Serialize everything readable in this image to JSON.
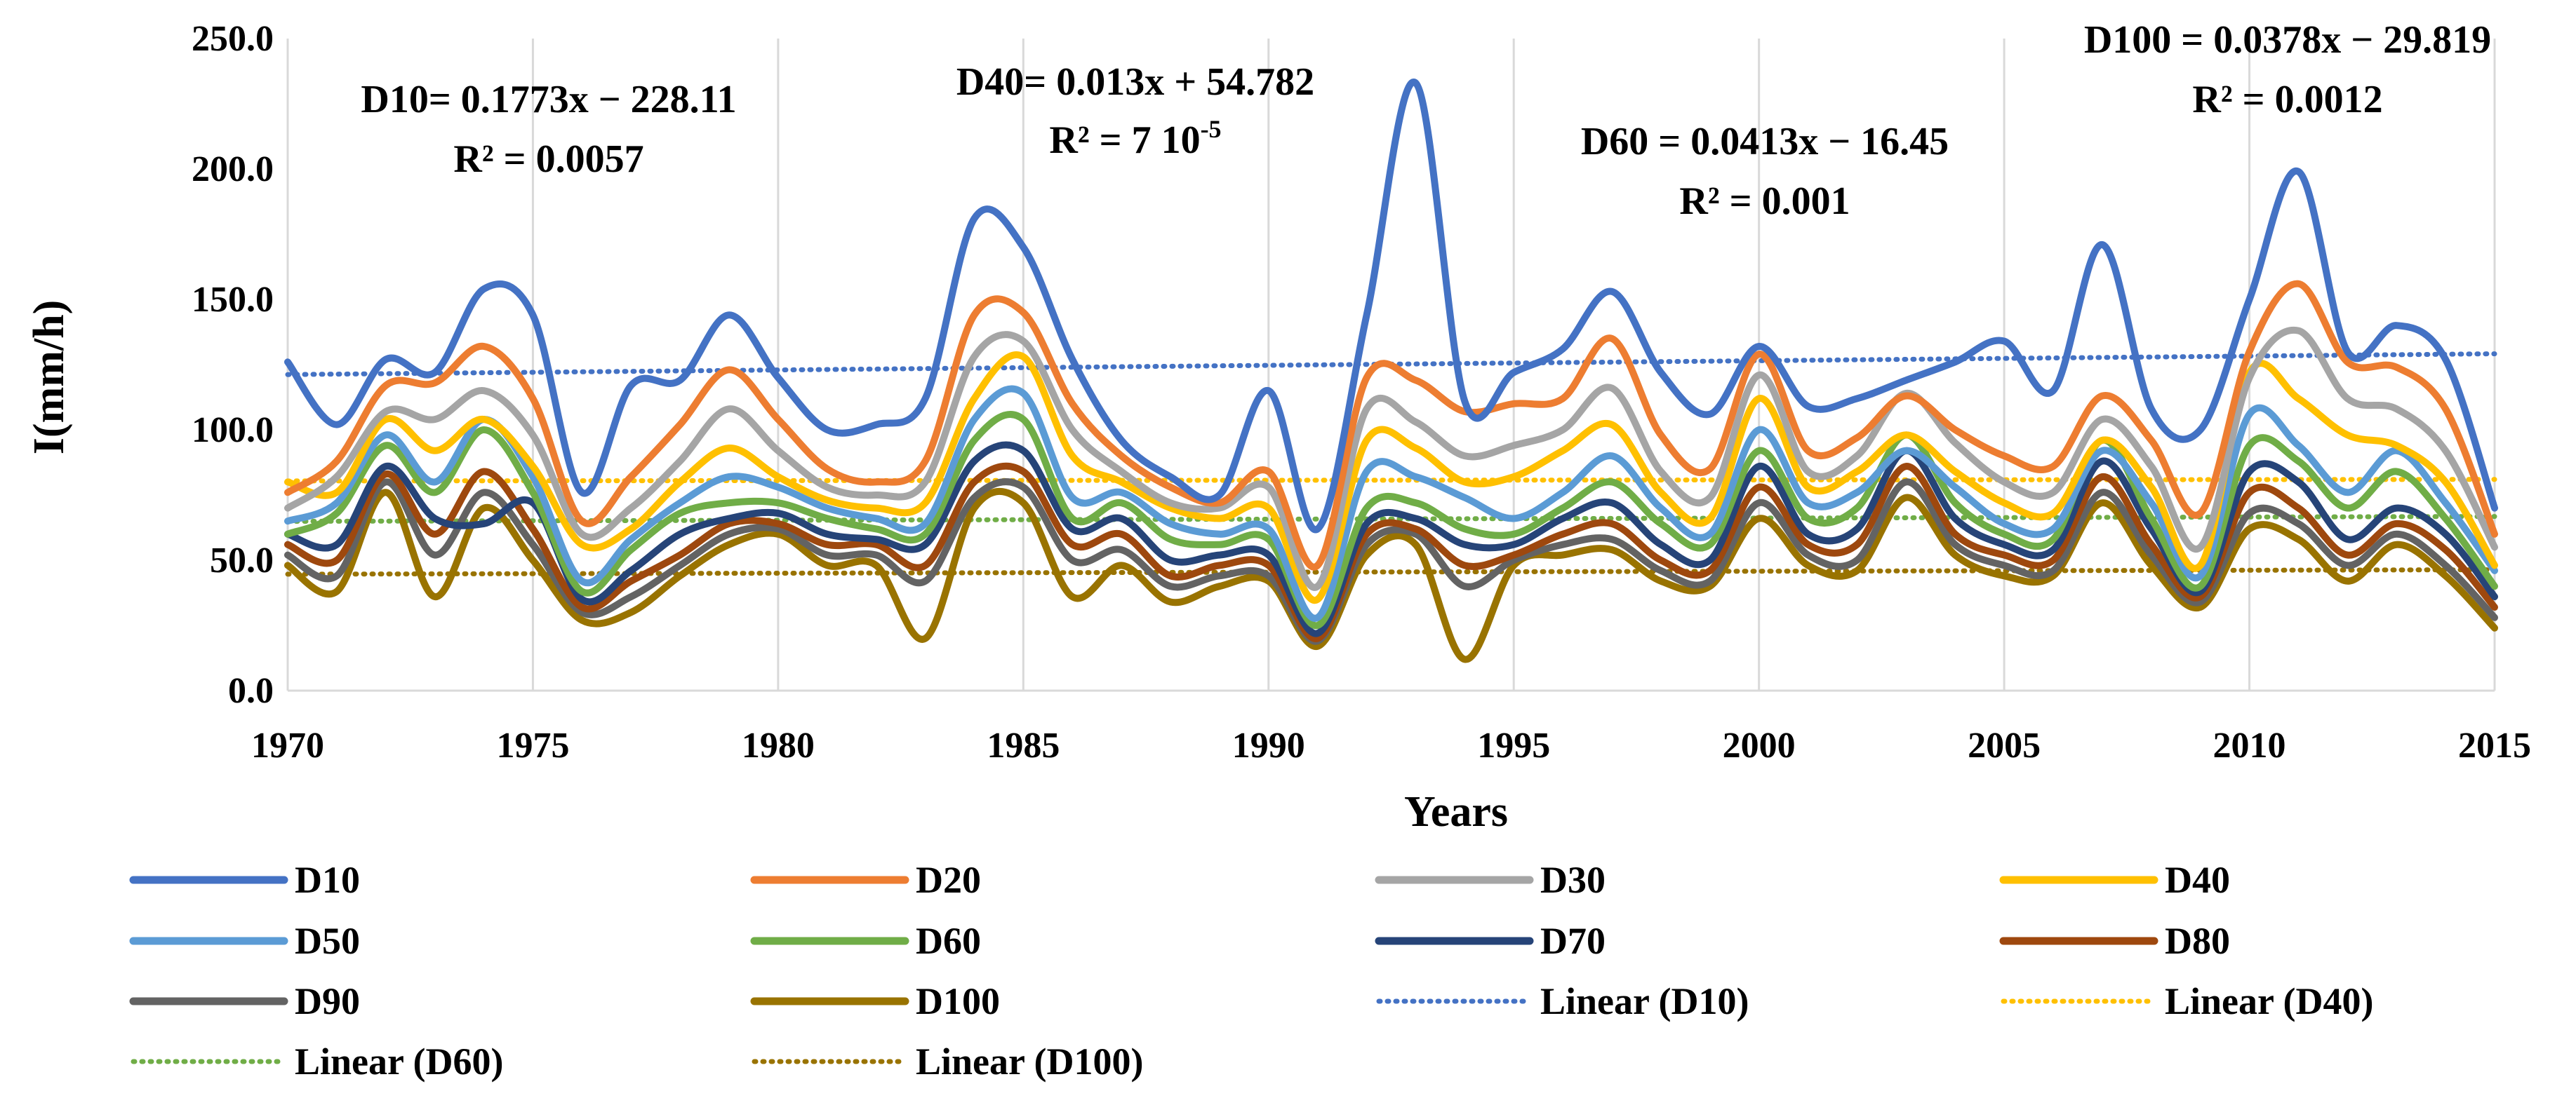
{
  "chart_data": {
    "type": "line",
    "title": "",
    "xlabel": "Years",
    "ylabel": "I(mm/h)",
    "xlim": [
      1970,
      2015
    ],
    "ylim": [
      0,
      250
    ],
    "x_ticks": [
      1970,
      1975,
      1980,
      1985,
      1990,
      1995,
      2000,
      2005,
      2010,
      2015
    ],
    "x_tick_labels": [
      "1970",
      "1975",
      "1980",
      "1985",
      "1990",
      "1995",
      "2000",
      "2005",
      "2010",
      "2015"
    ],
    "y_ticks": [
      0,
      50,
      100,
      150,
      200,
      250
    ],
    "y_tick_labels": [
      "0.0",
      "50.0",
      "100.0",
      "150.0",
      "200.0",
      "250.0"
    ],
    "grid": "vertical",
    "x": [
      1970,
      1971,
      1972,
      1973,
      1974,
      1975,
      1976,
      1977,
      1978,
      1979,
      1980,
      1981,
      1982,
      1983,
      1984,
      1985,
      1986,
      1987,
      1988,
      1989,
      1990,
      1991,
      1992,
      1993,
      1994,
      1995,
      1996,
      1997,
      1998,
      1999,
      2000,
      2001,
      2002,
      2003,
      2004,
      2005,
      2006,
      2007,
      2008,
      2009,
      2010,
      2011,
      2012,
      2013,
      2014,
      2015
    ],
    "series": [
      {
        "name": "D10",
        "color": "#4472C4",
        "values": [
          126,
          102,
          127,
          122,
          154,
          144,
          76,
          117,
          119,
          144,
          120,
          100,
          102,
          112,
          181,
          170,
          127,
          96,
          82,
          75,
          115,
          62,
          144,
          233,
          111,
          122,
          131,
          153,
          122,
          106,
          132,
          109,
          112,
          119,
          126,
          134,
          115,
          171,
          108,
          100,
          150,
          199,
          130,
          140,
          127,
          70
        ]
      },
      {
        "name": "D20",
        "color": "#ED7D31",
        "values": [
          76,
          88,
          117,
          118,
          132,
          112,
          65,
          82,
          102,
          123,
          104,
          85,
          80,
          88,
          144,
          145,
          110,
          90,
          78,
          72,
          84,
          48,
          120,
          119,
          107,
          110,
          112,
          135,
          98,
          85,
          129,
          92,
          97,
          113,
          100,
          90,
          86,
          113,
          96,
          68,
          130,
          156,
          126,
          124,
          108,
          60
        ]
      },
      {
        "name": "D30",
        "color": "#A5A5A5",
        "values": [
          70,
          82,
          107,
          104,
          115,
          98,
          60,
          70,
          88,
          108,
          92,
          78,
          75,
          80,
          128,
          134,
          100,
          84,
          72,
          70,
          78,
          40,
          108,
          103,
          90,
          94,
          100,
          116,
          84,
          74,
          121,
          84,
          90,
          114,
          95,
          80,
          76,
          104,
          86,
          55,
          120,
          138,
          112,
          108,
          92,
          55
        ]
      },
      {
        "name": "D40",
        "color": "#FFC000",
        "values": [
          80,
          76,
          104,
          92,
          104,
          86,
          56,
          62,
          80,
          93,
          82,
          73,
          70,
          72,
          112,
          128,
          90,
          80,
          70,
          66,
          70,
          35,
          96,
          93,
          80,
          82,
          92,
          102,
          76,
          66,
          112,
          78,
          84,
          98,
          84,
          72,
          68,
          96,
          78,
          48,
          122,
          112,
          98,
          94,
          80,
          48
        ]
      },
      {
        "name": "D50",
        "color": "#5B9BD5",
        "values": [
          65,
          72,
          98,
          80,
          104,
          82,
          42,
          58,
          72,
          82,
          78,
          70,
          66,
          64,
          104,
          114,
          74,
          76,
          64,
          60,
          62,
          28,
          84,
          82,
          74,
          66,
          76,
          90,
          70,
          60,
          100,
          72,
          76,
          92,
          78,
          64,
          62,
          92,
          72,
          44,
          106,
          94,
          76,
          92,
          72,
          46
        ]
      },
      {
        "name": "D60",
        "color": "#70AD47",
        "values": [
          60,
          68,
          94,
          76,
          100,
          76,
          38,
          54,
          68,
          72,
          72,
          66,
          62,
          60,
          96,
          104,
          66,
          72,
          58,
          56,
          58,
          25,
          70,
          72,
          62,
          60,
          70,
          80,
          64,
          56,
          92,
          66,
          70,
          98,
          72,
          60,
          58,
          96,
          66,
          40,
          94,
          88,
          70,
          84,
          66,
          40
        ]
      },
      {
        "name": "D70",
        "color": "#264478",
        "values": [
          60,
          56,
          86,
          66,
          64,
          72,
          35,
          46,
          60,
          66,
          68,
          60,
          58,
          56,
          88,
          92,
          62,
          66,
          50,
          52,
          52,
          22,
          64,
          66,
          56,
          56,
          66,
          72,
          56,
          50,
          86,
          60,
          62,
          92,
          66,
          56,
          54,
          88,
          62,
          38,
          84,
          80,
          58,
          70,
          60,
          36
        ]
      },
      {
        "name": "D80",
        "color": "#9E480E",
        "values": [
          56,
          50,
          83,
          60,
          84,
          62,
          32,
          42,
          52,
          64,
          64,
          56,
          56,
          48,
          80,
          84,
          56,
          60,
          44,
          48,
          48,
          20,
          60,
          62,
          48,
          52,
          60,
          64,
          50,
          46,
          78,
          56,
          56,
          86,
          60,
          52,
          50,
          82,
          56,
          36,
          76,
          70,
          52,
          64,
          54,
          32
        ]
      },
      {
        "name": "D90",
        "color": "#636363",
        "values": [
          52,
          44,
          80,
          52,
          76,
          56,
          30,
          36,
          48,
          60,
          62,
          52,
          52,
          42,
          74,
          78,
          50,
          54,
          40,
          44,
          44,
          19,
          56,
          60,
          40,
          50,
          56,
          58,
          46,
          42,
          72,
          52,
          50,
          80,
          56,
          48,
          46,
          76,
          52,
          34,
          68,
          64,
          48,
          60,
          48,
          28
        ]
      },
      {
        "name": "D100",
        "color": "#997300",
        "values": [
          48,
          38,
          76,
          36,
          70,
          50,
          27,
          30,
          44,
          56,
          60,
          48,
          48,
          20,
          70,
          72,
          36,
          48,
          34,
          40,
          42,
          17,
          52,
          56,
          12,
          48,
          52,
          54,
          42,
          40,
          66,
          48,
          46,
          74,
          52,
          44,
          44,
          72,
          48,
          32,
          62,
          58,
          42,
          56,
          44,
          24
        ]
      },
      {
        "name": "Linear (D10)",
        "color": "#4472C4",
        "dashed": true,
        "slope": 0.1773,
        "intercept": -228.11
      },
      {
        "name": "Linear (D40)",
        "color": "#FFC000",
        "dashed": true,
        "slope": 0.013,
        "intercept": 54.782
      },
      {
        "name": "Linear (D60)",
        "color": "#70AD47",
        "dashed": true,
        "slope": 0.0413,
        "intercept": -16.45
      },
      {
        "name": "Linear (D100)",
        "color": "#997300",
        "dashed": true,
        "slope": 0.0378,
        "intercept": -29.819
      }
    ],
    "annotations": [
      {
        "name": "d10-equation",
        "line1": "D10= 0.1773x − 228.11",
        "line2": "R² = 0.0057"
      },
      {
        "name": "d40-equation",
        "line1": "D40= 0.013x + 54.782",
        "line2": "R² = 7 10",
        "superscript": "-5"
      },
      {
        "name": "d60-equation",
        "line1": "D60 = 0.0413x − 16.45",
        "line2": "R² = 0.001"
      },
      {
        "name": "d100-equation",
        "line1": "D100 = 0.0378x − 29.819",
        "line2": "R² = 0.0012"
      }
    ],
    "legend_position": "bottom"
  }
}
